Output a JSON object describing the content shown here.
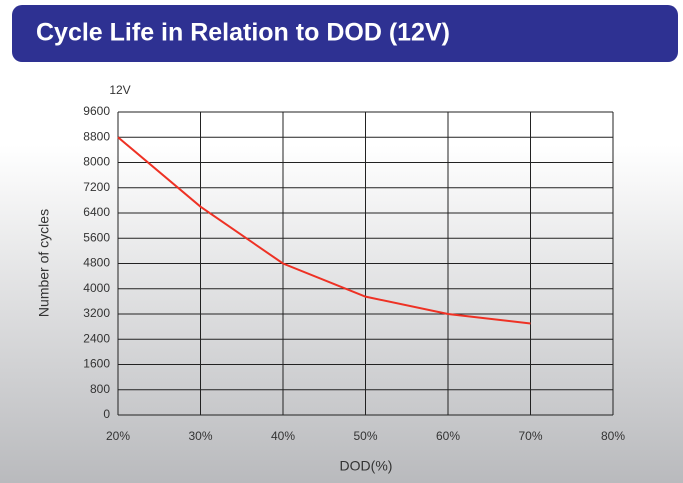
{
  "chart_data": {
    "type": "line",
    "title": "Cycle Life in Relation to DOD (12V)",
    "y_unit": "12V",
    "xlabel": "DOD(%)",
    "ylabel": "Number of cycles",
    "x": [
      20,
      30,
      40,
      50,
      60,
      70
    ],
    "series": [
      {
        "name": "12V",
        "color": "#ee3124",
        "values": [
          8800,
          6600,
          4800,
          3750,
          3200,
          2900
        ]
      }
    ],
    "xlim": [
      20,
      80
    ],
    "xticks": [
      {
        "value": 20,
        "label": "20%"
      },
      {
        "value": 30,
        "label": "30%"
      },
      {
        "value": 40,
        "label": "40%"
      },
      {
        "value": 50,
        "label": "50%"
      },
      {
        "value": 60,
        "label": "60%"
      },
      {
        "value": 70,
        "label": "70%"
      },
      {
        "value": 80,
        "label": "80%"
      }
    ],
    "ylim": [
      0,
      9600
    ],
    "yticks": [
      0,
      800,
      1600,
      2400,
      3200,
      4000,
      4800,
      5600,
      6400,
      7200,
      8000,
      8800,
      9600
    ],
    "grid": true
  }
}
